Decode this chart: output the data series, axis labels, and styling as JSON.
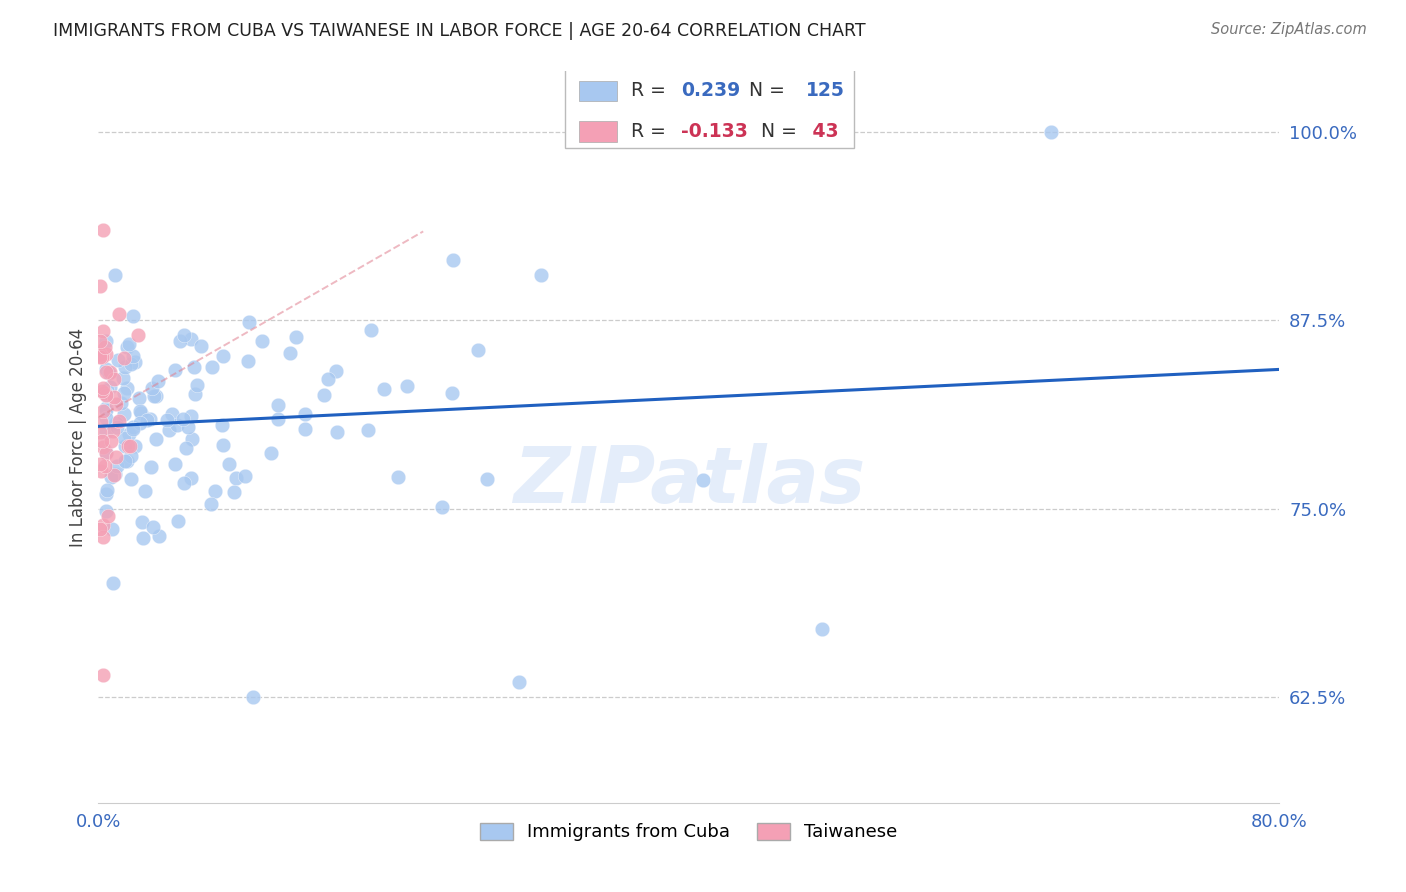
{
  "title": "IMMIGRANTS FROM CUBA VS TAIWANESE IN LABOR FORCE | AGE 20-64 CORRELATION CHART",
  "source": "Source: ZipAtlas.com",
  "x_min": 0.0,
  "x_max": 0.8,
  "y_min": 0.555,
  "y_max": 1.04,
  "ylabel": "In Labor Force | Age 20-64",
  "legend_cuba": "Immigrants from Cuba",
  "legend_taiwanese": "Taiwanese",
  "R_cuba": 0.239,
  "N_cuba": 125,
  "R_taiwanese": -0.133,
  "N_taiwanese": 43,
  "color_cuba": "#a8c8f0",
  "color_taiwanese": "#f4a0b5",
  "color_trendline_cuba": "#2060c0",
  "color_trendline_taiwanese": "#e08090",
  "watermark": "ZIPatlas",
  "yticks": [
    0.625,
    0.75,
    0.875,
    1.0
  ],
  "ytick_labels": [
    "62.5%",
    "75.0%",
    "87.5%",
    "100.0%"
  ],
  "xticks": [
    0.0,
    0.8
  ],
  "xtick_labels": [
    "0.0%",
    "80.0%"
  ],
  "seed": 12345
}
